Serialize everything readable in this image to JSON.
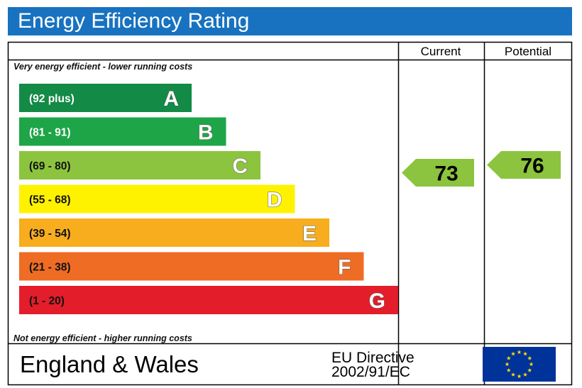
{
  "title": "Energy Efficiency Rating",
  "header": {
    "current": "Current",
    "potential": "Potential"
  },
  "notes": {
    "top": "Very energy efficient - lower running costs",
    "bottom": "Not energy efficient - higher running costs"
  },
  "footer": {
    "region": "England & Wales",
    "directive_line1": "EU Directive",
    "directive_line2": "2002/91/EC"
  },
  "chart_data": {
    "type": "bar",
    "bands": [
      {
        "range": "(92 plus)",
        "letter": "A",
        "color": "#138a45",
        "text_color": "#ffffff",
        "min": 92,
        "max": 100
      },
      {
        "range": "(81 - 91)",
        "letter": "B",
        "color": "#1ea547",
        "text_color": "#ffffff",
        "min": 81,
        "max": 91
      },
      {
        "range": "(69 - 80)",
        "letter": "C",
        "color": "#8cc43f",
        "text_color": "#111111",
        "min": 69,
        "max": 80
      },
      {
        "range": "(55 - 68)",
        "letter": "D",
        "color": "#fff200",
        "text_color": "#111111",
        "min": 55,
        "max": 68
      },
      {
        "range": "(39 - 54)",
        "letter": "E",
        "color": "#f7ad1e",
        "text_color": "#111111",
        "min": 39,
        "max": 54
      },
      {
        "range": "(21 - 38)",
        "letter": "F",
        "color": "#ee6c24",
        "text_color": "#111111",
        "min": 21,
        "max": 38
      },
      {
        "range": "(1 - 20)",
        "letter": "G",
        "color": "#e31d2a",
        "text_color": "#111111",
        "min": 1,
        "max": 20
      }
    ],
    "current": {
      "value": 73,
      "band": "C",
      "color": "#8cc43f"
    },
    "potential": {
      "value": 76,
      "band": "C",
      "color": "#8cc43f"
    }
  },
  "colors": {
    "title_bar": "#1872c0",
    "eu_flag": "#003399",
    "eu_stars": "#ffdd00"
  }
}
